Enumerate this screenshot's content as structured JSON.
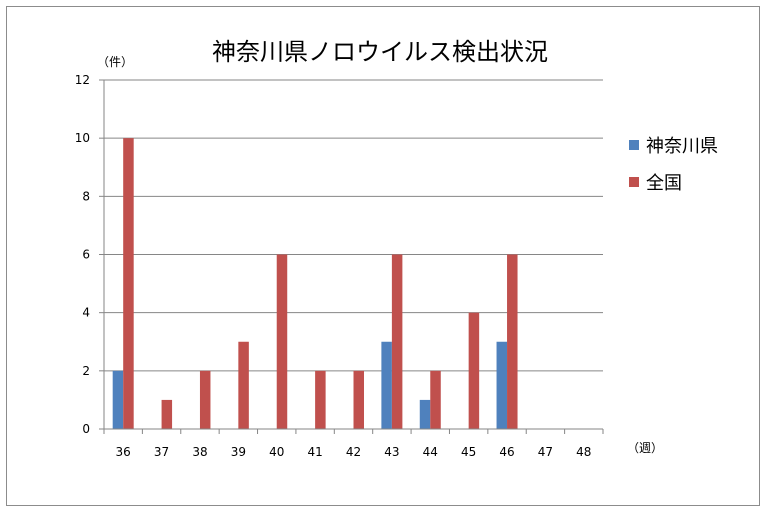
{
  "chart_data": {
    "type": "bar",
    "title": "神奈川県ノロウイルス検出状況",
    "ylabel": "（件）",
    "xlabel": "（週）",
    "categories": [
      "36",
      "37",
      "38",
      "39",
      "40",
      "41",
      "42",
      "43",
      "44",
      "45",
      "46",
      "47",
      "48"
    ],
    "series": [
      {
        "name": "神奈川県",
        "color": "#4f81bd",
        "values": [
          2,
          0,
          0,
          0,
          0,
          0,
          0,
          3,
          1,
          0,
          3,
          0,
          0
        ]
      },
      {
        "name": "全国",
        "color": "#c0504d",
        "values": [
          10,
          1,
          2,
          3,
          6,
          2,
          2,
          6,
          2,
          4,
          6,
          0,
          0
        ]
      }
    ],
    "ylim": [
      0,
      12
    ],
    "yticks": [
      0,
      2,
      4,
      6,
      8,
      10,
      12
    ],
    "grid": true,
    "legend_position": "right"
  }
}
